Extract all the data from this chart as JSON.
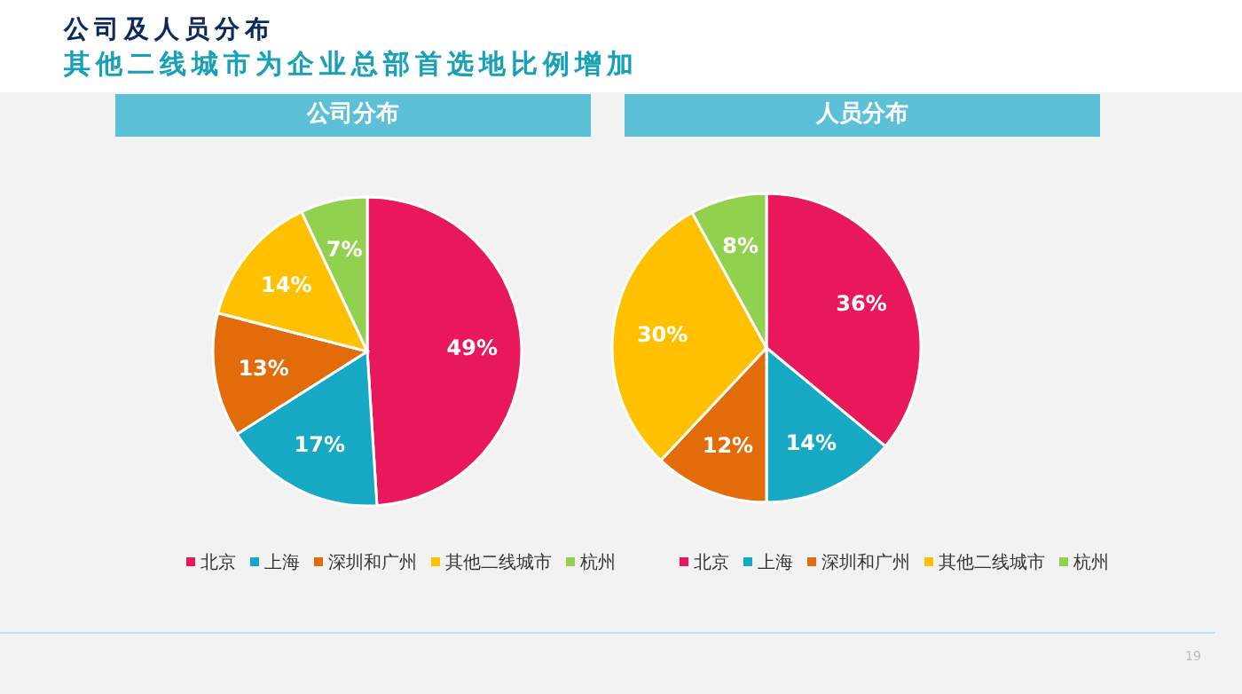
{
  "chart_data": [
    {
      "type": "pie",
      "title": "公司分布",
      "categories": [
        "北京",
        "上海",
        "深圳和广州",
        "其他二线城市",
        "杭州"
      ],
      "values": [
        49,
        17,
        13,
        14,
        7
      ],
      "value_labels": [
        "49%",
        "17%",
        "13%",
        "14%",
        "7%"
      ],
      "colors": [
        "#e8185a",
        "#17a8c4",
        "#e36c0a",
        "#ffc000",
        "#92d050"
      ],
      "legend": "bottom",
      "annotations": [
        "公司及人员分布",
        "其他二线城市为企业总部首选地比例增加"
      ]
    },
    {
      "type": "pie",
      "title": "人员分布",
      "categories": [
        "北京",
        "上海",
        "深圳和广州",
        "其他二线城市",
        "杭州"
      ],
      "values": [
        36,
        14,
        12,
        30,
        8
      ],
      "value_labels": [
        "36%",
        "14%",
        "12%",
        "30%",
        "8%"
      ],
      "colors": [
        "#e8185a",
        "#17a8c4",
        "#e36c0a",
        "#ffc000",
        "#92d050"
      ],
      "legend": "bottom",
      "annotations": [
        "19"
      ]
    }
  ]
}
